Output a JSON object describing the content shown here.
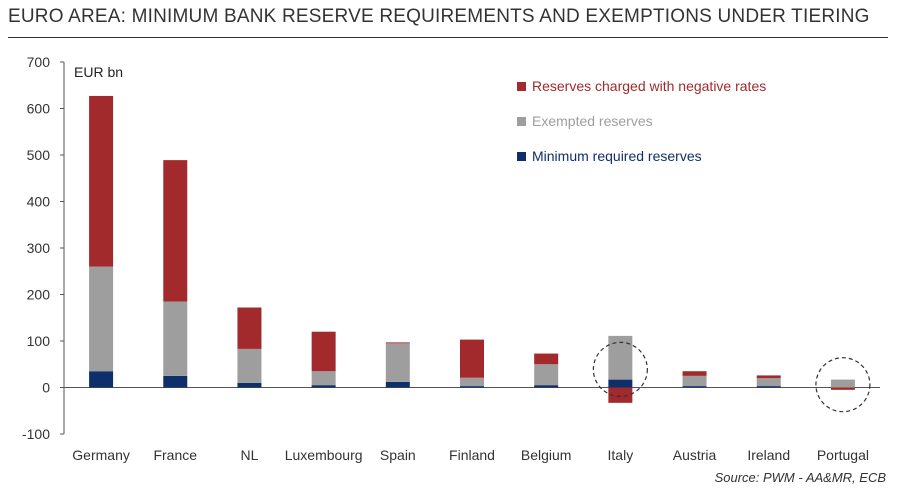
{
  "header": {
    "title": "EURO AREA: MINIMUM BANK RESERVE REQUIREMENTS AND EXEMPTIONS UNDER TIERING"
  },
  "footer": {
    "source": "Source: PWM - AA&MR, ECB"
  },
  "chart_data": {
    "type": "bar",
    "stacked": true,
    "title": "EURO AREA: MINIMUM BANK RESERVE REQUIREMENTS AND EXEMPTIONS UNDER TIERING",
    "ylabel": "EUR bn",
    "ylim": [
      -100,
      700
    ],
    "yticks": [
      -100,
      0,
      100,
      200,
      300,
      400,
      500,
      600,
      700
    ],
    "grid": false,
    "legend_position": "top-right",
    "categories": [
      "Germany",
      "France",
      "NL",
      "Luxembourg",
      "Spain",
      "Finland",
      "Belgium",
      "Italy",
      "Austria",
      "Ireland",
      "Portugal"
    ],
    "series": [
      {
        "name": "Minimum required reserves",
        "color": "#0f2f6b",
        "values": [
          35,
          25,
          10,
          5,
          12,
          3,
          5,
          17,
          3,
          3,
          0
        ]
      },
      {
        "name": "Exempted reserves",
        "color": "#9e9e9e",
        "values": [
          225,
          160,
          73,
          30,
          83,
          18,
          45,
          94,
          22,
          17,
          17
        ]
      },
      {
        "name": "Reserves charged with negative rates",
        "color": "#a32a2c",
        "values": [
          367,
          304,
          89,
          85,
          2,
          82,
          23,
          -33,
          10,
          6,
          -5
        ]
      }
    ],
    "highlighted_categories": [
      "Italy",
      "Portugal"
    ]
  }
}
